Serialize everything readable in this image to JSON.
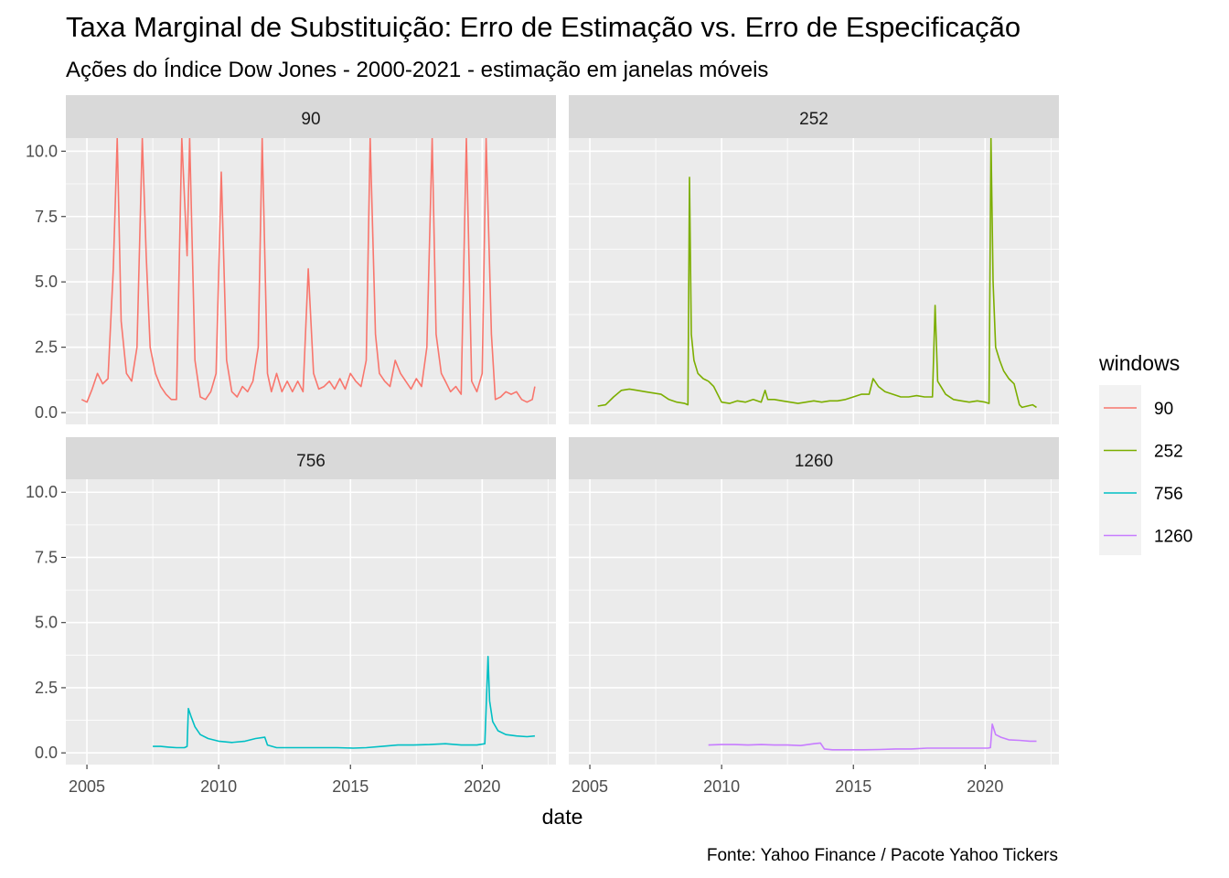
{
  "chart_data": {
    "type": "line",
    "title": "Taxa Marginal de Substituição: Erro de Estimação vs. Erro de Especificação",
    "subtitle": "Ações do Índice Dow Jones - 2000-2021 - estimação em janelas móveis",
    "caption": "Fonte: Yahoo Finance / Pacote Yahoo Tickers",
    "xlabel": "date",
    "ylabel": "",
    "xlim": [
      2004.2,
      2022.8
    ],
    "ylim": [
      -0.45,
      10.5
    ],
    "x_ticks": [
      "2005",
      "2010",
      "2015",
      "2020"
    ],
    "y_ticks": [
      "0.0",
      "2.5",
      "5.0",
      "7.5",
      "10.0"
    ],
    "facet_by": "windows",
    "grid": true,
    "legend": {
      "title": "windows",
      "position": "right",
      "entries": [
        "90",
        "252",
        "756",
        "1260"
      ]
    },
    "panels": [
      {
        "label": "90",
        "color": "#F8766D",
        "x": [
          2004.8,
          2005.0,
          2005.2,
          2005.4,
          2005.6,
          2005.8,
          2006.0,
          2006.15,
          2006.3,
          2006.5,
          2006.7,
          2006.9,
          2007.1,
          2007.25,
          2007.4,
          2007.6,
          2007.8,
          2008.0,
          2008.2,
          2008.4,
          2008.6,
          2008.8,
          2008.9,
          2009.1,
          2009.3,
          2009.5,
          2009.7,
          2009.9,
          2010.1,
          2010.3,
          2010.5,
          2010.7,
          2010.9,
          2011.1,
          2011.3,
          2011.5,
          2011.65,
          2011.85,
          2012.0,
          2012.2,
          2012.4,
          2012.6,
          2012.8,
          2013.0,
          2013.2,
          2013.4,
          2013.6,
          2013.8,
          2014.0,
          2014.2,
          2014.4,
          2014.6,
          2014.8,
          2015.0,
          2015.2,
          2015.4,
          2015.6,
          2015.75,
          2015.95,
          2016.1,
          2016.3,
          2016.5,
          2016.7,
          2016.9,
          2017.1,
          2017.3,
          2017.5,
          2017.7,
          2017.9,
          2018.1,
          2018.25,
          2018.45,
          2018.6,
          2018.8,
          2019.0,
          2019.2,
          2019.4,
          2019.6,
          2019.8,
          2020.0,
          2020.15,
          2020.35,
          2020.5,
          2020.7,
          2020.9,
          2021.1,
          2021.3,
          2021.5,
          2021.7,
          2021.9,
          2022.0
        ],
        "y": [
          0.5,
          0.4,
          0.9,
          1.5,
          1.1,
          1.3,
          5.5,
          10.5,
          3.5,
          1.5,
          1.2,
          2.5,
          10.5,
          6.0,
          2.5,
          1.5,
          1.0,
          0.7,
          0.5,
          0.5,
          10.5,
          6.0,
          10.5,
          2.0,
          0.6,
          0.5,
          0.8,
          1.5,
          9.2,
          2.0,
          0.8,
          0.6,
          1.0,
          0.8,
          1.2,
          2.5,
          10.5,
          1.5,
          0.8,
          1.5,
          0.8,
          1.2,
          0.8,
          1.2,
          0.8,
          5.5,
          1.5,
          0.9,
          1.0,
          1.2,
          0.9,
          1.3,
          0.9,
          1.5,
          1.2,
          1.0,
          2.0,
          10.5,
          3.0,
          1.5,
          1.2,
          1.0,
          2.0,
          1.5,
          1.2,
          0.9,
          1.3,
          1.0,
          2.5,
          10.5,
          3.0,
          1.5,
          1.2,
          0.8,
          1.0,
          0.7,
          10.5,
          1.2,
          0.8,
          1.5,
          10.5,
          3.0,
          0.5,
          0.6,
          0.8,
          0.7,
          0.8,
          0.5,
          0.4,
          0.5,
          1.0
        ]
      },
      {
        "label": "252",
        "color": "#7CAE00",
        "x": [
          2005.3,
          2005.6,
          2005.9,
          2006.2,
          2006.5,
          2006.8,
          2007.1,
          2007.4,
          2007.7,
          2008.0,
          2008.3,
          2008.6,
          2008.72,
          2008.78,
          2008.85,
          2008.95,
          2009.1,
          2009.3,
          2009.5,
          2009.7,
          2010.0,
          2010.3,
          2010.6,
          2010.9,
          2011.2,
          2011.5,
          2011.65,
          2011.75,
          2012.0,
          2012.3,
          2012.6,
          2012.9,
          2013.2,
          2013.5,
          2013.8,
          2014.1,
          2014.4,
          2014.7,
          2015.0,
          2015.3,
          2015.6,
          2015.75,
          2015.95,
          2016.2,
          2016.5,
          2016.8,
          2017.1,
          2017.4,
          2017.7,
          2018.0,
          2018.1,
          2018.2,
          2018.5,
          2018.8,
          2019.1,
          2019.4,
          2019.7,
          2020.0,
          2020.15,
          2020.22,
          2020.3,
          2020.4,
          2020.55,
          2020.7,
          2020.9,
          2021.1,
          2021.3,
          2021.4,
          2021.6,
          2021.8,
          2021.95
        ],
        "y": [
          0.25,
          0.3,
          0.6,
          0.85,
          0.9,
          0.85,
          0.8,
          0.75,
          0.7,
          0.5,
          0.4,
          0.35,
          0.3,
          9.0,
          3.0,
          2.0,
          1.5,
          1.3,
          1.2,
          1.0,
          0.4,
          0.35,
          0.45,
          0.4,
          0.5,
          0.4,
          0.85,
          0.5,
          0.5,
          0.45,
          0.4,
          0.35,
          0.4,
          0.45,
          0.4,
          0.45,
          0.45,
          0.5,
          0.6,
          0.7,
          0.7,
          1.3,
          1.0,
          0.8,
          0.7,
          0.6,
          0.6,
          0.65,
          0.6,
          0.6,
          4.1,
          1.2,
          0.7,
          0.5,
          0.45,
          0.4,
          0.45,
          0.4,
          0.35,
          10.5,
          5.0,
          2.5,
          2.0,
          1.6,
          1.3,
          1.1,
          0.3,
          0.2,
          0.25,
          0.3,
          0.2
        ]
      },
      {
        "label": "756",
        "color": "#00BFC4",
        "x": [
          2007.5,
          2007.8,
          2008.1,
          2008.4,
          2008.7,
          2008.8,
          2008.85,
          2008.95,
          2009.1,
          2009.3,
          2009.6,
          2010.0,
          2010.5,
          2011.0,
          2011.4,
          2011.75,
          2011.85,
          2012.2,
          2012.7,
          2013.3,
          2013.9,
          2014.5,
          2015.1,
          2015.6,
          2016.2,
          2016.8,
          2017.4,
          2018.0,
          2018.6,
          2019.2,
          2019.8,
          2020.1,
          2020.22,
          2020.28,
          2020.4,
          2020.6,
          2020.9,
          2021.3,
          2021.7,
          2022.0
        ],
        "y": [
          0.25,
          0.25,
          0.22,
          0.2,
          0.2,
          0.25,
          1.7,
          1.4,
          1.0,
          0.7,
          0.55,
          0.45,
          0.4,
          0.45,
          0.55,
          0.6,
          0.3,
          0.2,
          0.2,
          0.2,
          0.2,
          0.2,
          0.18,
          0.2,
          0.25,
          0.3,
          0.3,
          0.32,
          0.35,
          0.3,
          0.3,
          0.35,
          3.7,
          2.0,
          1.2,
          0.85,
          0.7,
          0.65,
          0.62,
          0.65
        ]
      },
      {
        "label": "1260",
        "color": "#C77CFF",
        "x": [
          2009.5,
          2010.0,
          2010.5,
          2011.0,
          2011.5,
          2012.0,
          2012.5,
          2013.0,
          2013.5,
          2013.75,
          2013.9,
          2014.2,
          2014.8,
          2015.4,
          2016.0,
          2016.6,
          2017.2,
          2017.8,
          2018.4,
          2019.0,
          2019.6,
          2020.1,
          2020.2,
          2020.27,
          2020.4,
          2020.6,
          2020.9,
          2021.3,
          2021.7,
          2021.95
        ],
        "y": [
          0.3,
          0.32,
          0.32,
          0.3,
          0.32,
          0.3,
          0.3,
          0.28,
          0.35,
          0.38,
          0.15,
          0.12,
          0.12,
          0.12,
          0.13,
          0.15,
          0.15,
          0.18,
          0.18,
          0.18,
          0.18,
          0.18,
          0.2,
          1.1,
          0.7,
          0.6,
          0.5,
          0.48,
          0.45,
          0.45
        ]
      }
    ]
  }
}
